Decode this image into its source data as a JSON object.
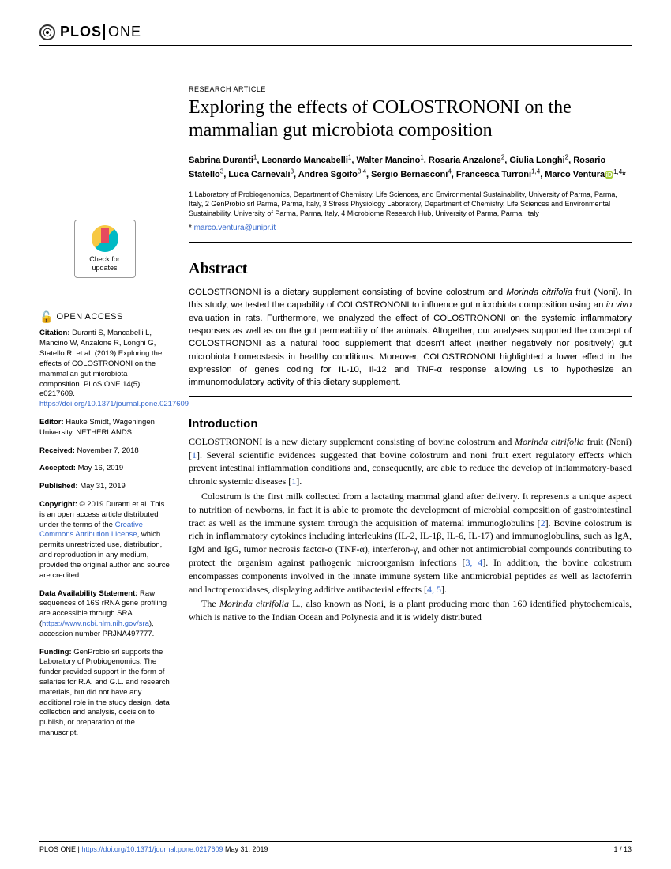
{
  "journal": {
    "logo_plos": "PLOS",
    "logo_one": "ONE"
  },
  "article_type": "RESEARCH ARTICLE",
  "title": "Exploring the effects of COLOSTRONONI on the mammalian gut microbiota composition",
  "authors_html": "Sabrina Duranti<sup>1</sup>, Leonardo Mancabelli<sup>1</sup>, Walter Mancino<sup>1</sup>, Rosaria Anzalone<sup>2</sup>, Giulia Longhi<sup>2</sup>, Rosario Statello<sup>3</sup>, Luca Carnevali<sup>3</sup>, Andrea Sgoifo<sup>3,4</sup>, Sergio Bernasconi<sup>4</sup>, Francesca Turroni<sup>1,4</sup>, Marco Ventura",
  "author_last_aff": "1,4",
  "affiliations": "1 Laboratory of Probiogenomics, Department of Chemistry, Life Sciences, and Environmental Sustainability, University of Parma, Parma, Italy, 2 GenProbio srl Parma, Parma, Italy, 3 Stress Physiology Laboratory, Department of Chemistry, Life Sciences and Environmental Sustainability, University of Parma, Parma, Italy, 4 Microbiome Research Hub, University of Parma, Parma, Italy",
  "corr_email": "marco.ventura@unipr.it",
  "check_updates": "Check for updates",
  "open_access_label": "OPEN ACCESS",
  "citation_label": "Citation:",
  "citation_text": " Duranti S, Mancabelli L, Mancino W, Anzalone R, Longhi G, Statello R, et al. (2019) Exploring the effects of COLOSTRONONI on the mammalian gut microbiota composition. PLoS ONE 14(5): e0217609. ",
  "doi_link": "https://doi.org/10.1371/journal.pone.0217609",
  "editor_label": "Editor:",
  "editor_text": " Hauke Smidt, Wageningen University, NETHERLANDS",
  "received_label": "Received:",
  "received_text": " November 7, 2018",
  "accepted_label": "Accepted:",
  "accepted_text": " May 16, 2019",
  "published_label": "Published:",
  "published_text": " May 31, 2019",
  "copyright_label": "Copyright:",
  "copyright_text_a": " © 2019 Duranti et al. This is an open access article distributed under the terms of the ",
  "cc_link": "Creative Commons Attribution License",
  "copyright_text_b": ", which permits unrestricted use, distribution, and reproduction in any medium, provided the original author and source are credited.",
  "data_label": "Data Availability Statement:",
  "data_text_a": " Raw sequences of 16S rRNA gene profiling are accessible through SRA (",
  "sra_link": "https://www.ncbi.nlm.nih.gov/sra",
  "data_text_b": "), accession number PRJNA497777.",
  "funding_label": "Funding:",
  "funding_text": " GenProbio srl supports the Laboratory of Probiogenomics. The funder provided support in the form of salaries for R.A. and G.L. and research materials, but did not have any additional role in the study design, data collection and analysis, decision to publish, or preparation of the manuscript.",
  "abstract_heading": "Abstract",
  "abstract_text": "COLOSTRONONI is a dietary supplement consisting of bovine colostrum and Morinda citrifolia fruit (Noni). In this study, we tested the capability of COLOSTRONONI to influence gut microbiota composition using an in vivo evaluation in rats. Furthermore, we analyzed the effect of COLOSTRONONI on the systemic inflammatory responses as well as on the gut permeability of the animals. Altogether, our analyses supported the concept of COLOSTRONONI as a natural food supplement that doesn't affect (neither negatively nor positively) gut microbiota homeostasis in healthy conditions. Moreover, COLOSTRONONI highlighted a lower effect in the expression of genes coding for IL-10, Il-12 and TNF-α response allowing us to hypothesize an immunomodulatory activity of this dietary supplement.",
  "intro_heading": "Introduction",
  "intro_p1": "COLOSTRONONI is a new dietary supplement consisting of bovine colostrum and Morinda citrifolia fruit (Noni) [1]. Several scientific evidences suggested that bovine colostrum and noni fruit exert regulatory effects which prevent intestinal inflammation conditions and, consequently, are able to reduce the develop of inflammatory-based chronic systemic diseases [1].",
  "intro_p2": "Colostrum is the first milk collected from a lactating mammal gland after delivery. It represents a unique aspect to nutrition of newborns, in fact it is able to promote the development of microbial composition of gastrointestinal tract as well as the immune system through the acquisition of maternal immunoglobulins [2]. Bovine colostrum is rich in inflammatory cytokines including interleukins (IL-2, IL-1β, IL-6, IL-17) and immunoglobulins, such as IgA, IgM and IgG, tumor necrosis factor-α (TNF-α), interferon-γ, and other not antimicrobial compounds contributing to protect the organism against pathogenic microorganism infections [3, 4]. In addition, the bovine colostrum encompasses components involved in the innate immune system like antimicrobial peptides as well as lactoferrin and lactoperoxidases, displaying additive antibacterial effects [4, 5].",
  "intro_p3": "The Morinda citrifolia L., also known as Noni, is a plant producing more than 160 identified phytochemicals, which is native to the Indian Ocean and Polynesia and it is widely distributed",
  "footer_left_a": "PLOS ONE | ",
  "footer_doi": "https://doi.org/10.1371/journal.pone.0217609",
  "footer_date": "   May 31, 2019",
  "footer_right": "1 / 13"
}
